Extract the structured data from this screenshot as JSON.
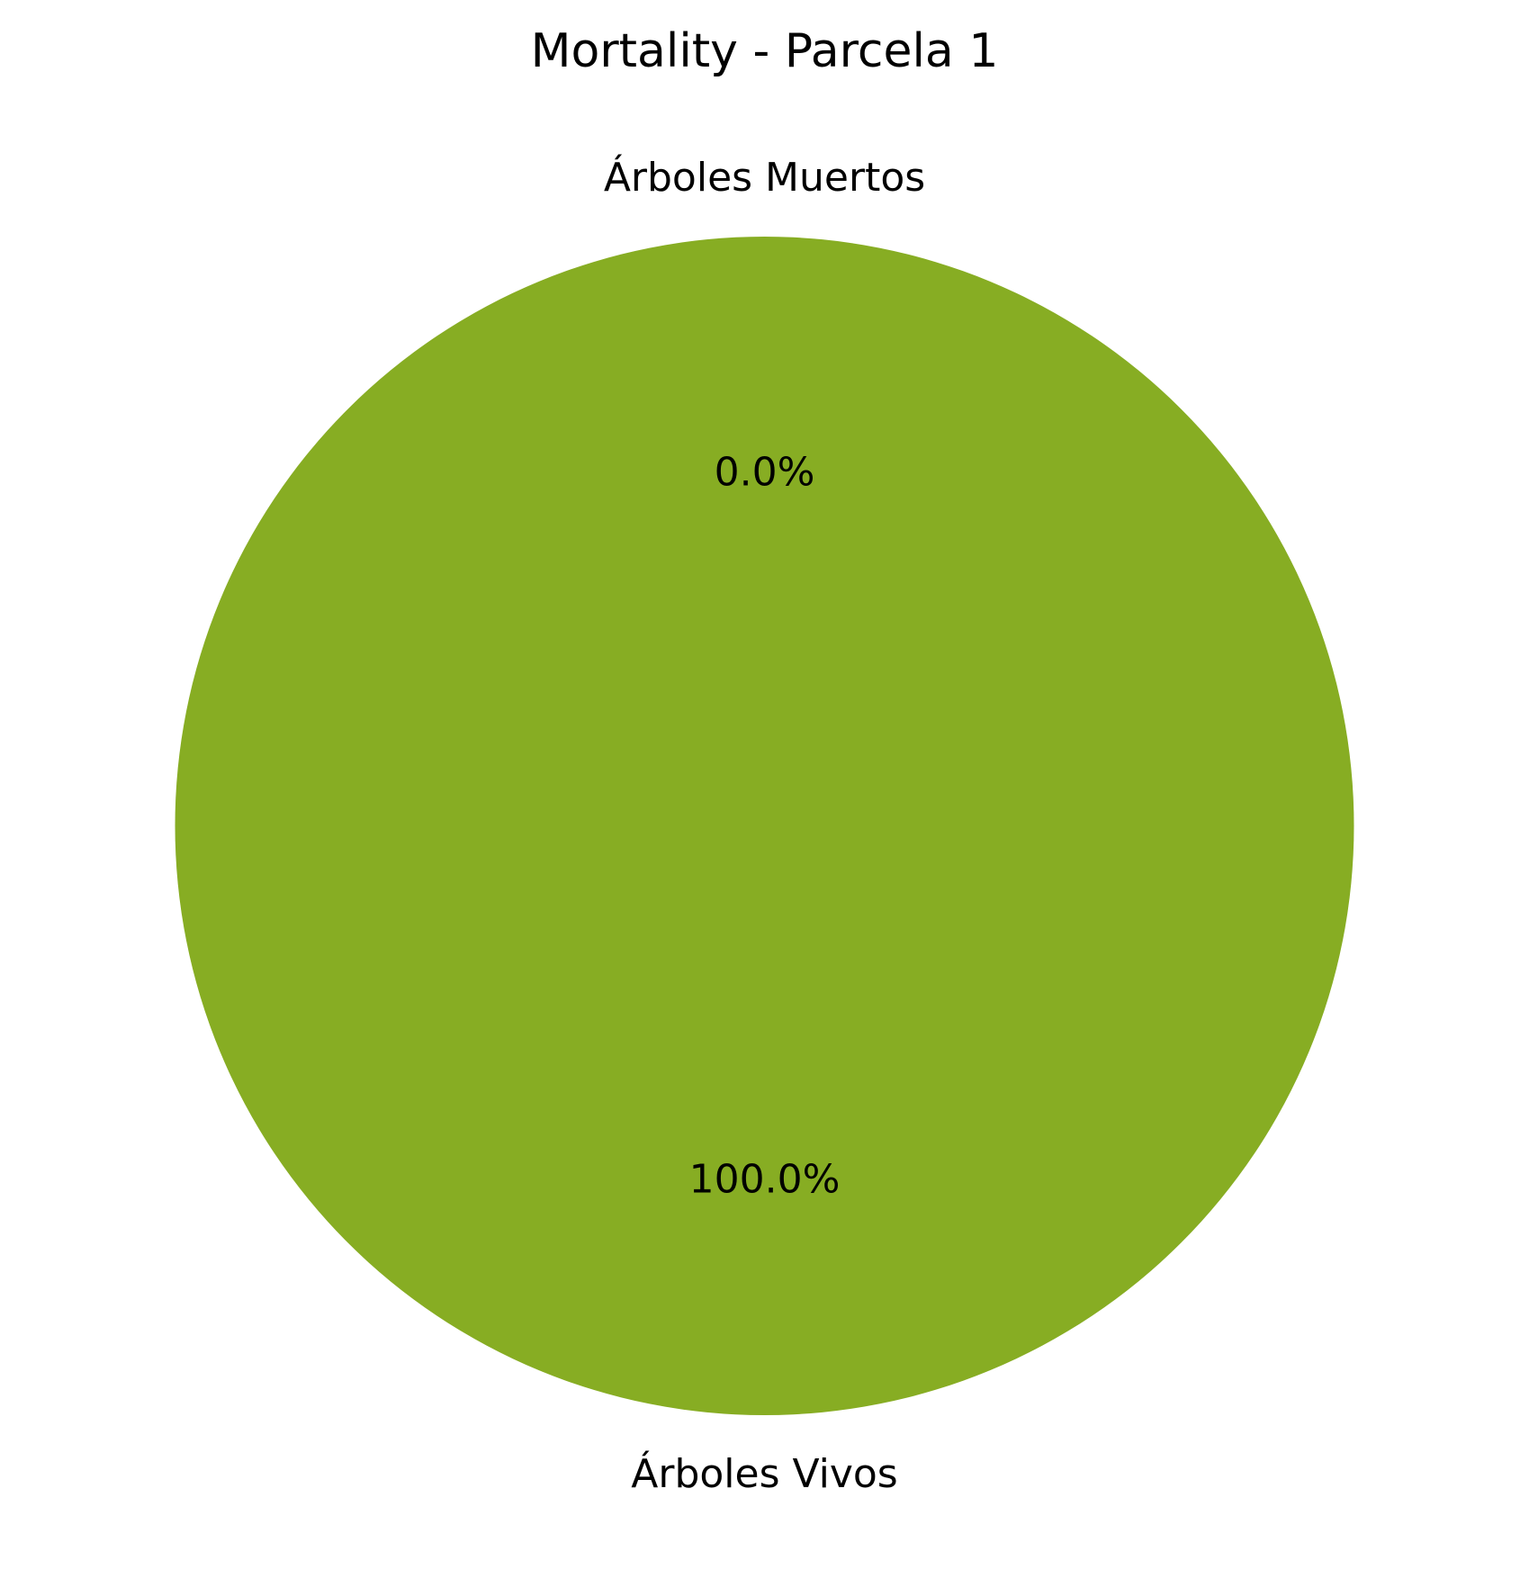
{
  "chart_data": {
    "type": "pie",
    "title": "Mortality - Parcela 1",
    "slices": [
      {
        "label": "Árboles Muertos",
        "value": 0,
        "pct_label": "0.0%",
        "color": "#ff6961"
      },
      {
        "label": "Árboles Vivos",
        "value": 100,
        "pct_label": "100.0%",
        "color": "#87ad23"
      }
    ],
    "start_angle_deg": 90,
    "direction": "counterclockwise",
    "legend": "none"
  }
}
